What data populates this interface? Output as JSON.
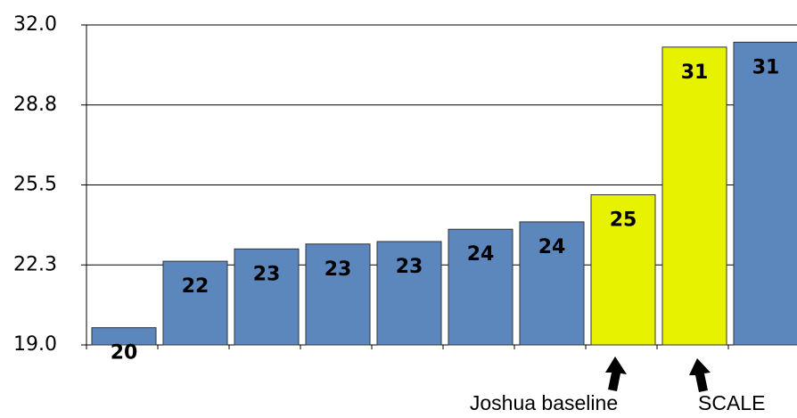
{
  "chart_data": {
    "type": "bar",
    "categories": [
      null,
      null,
      null,
      null,
      null,
      null,
      null,
      null,
      null,
      null
    ],
    "values": [
      19.7,
      22.4,
      22.9,
      23.1,
      23.2,
      23.7,
      24.0,
      25.1,
      31.1,
      31.3
    ],
    "value_labels": [
      "20",
      "22",
      "23",
      "23",
      "23",
      "24",
      "24",
      "25",
      "31",
      "31"
    ],
    "colors": [
      "#5b87bd",
      "#5b87bd",
      "#5b87bd",
      "#5b87bd",
      "#5b87bd",
      "#5b87bd",
      "#5b87bd",
      "#e6f200",
      "#e6f200",
      "#5b87bd"
    ],
    "ylim": [
      19,
      32
    ],
    "yticks": [
      {
        "value": 19,
        "label": "19.0"
      },
      {
        "value": 22.25,
        "label": "22.3"
      },
      {
        "value": 25.5,
        "label": "25.5"
      },
      {
        "value": 28.75,
        "label": "28.8"
      },
      {
        "value": 32,
        "label": "32.0"
      }
    ],
    "grid": true,
    "annotations": [
      "Joshua baseline",
      "SCALE"
    ]
  }
}
